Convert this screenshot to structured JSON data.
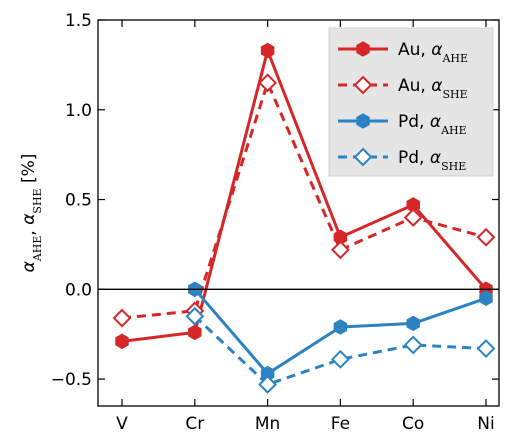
{
  "chart_data": {
    "type": "line",
    "categories": [
      "V",
      "Cr",
      "Mn",
      "Fe",
      "Co",
      "Ni"
    ],
    "ylabel": "α_AHE, α_SHE [%]",
    "ylim": [
      -0.65,
      1.5
    ],
    "yticks": [
      "1.5",
      "1.0",
      "0.5",
      "0.0",
      "−0.5"
    ],
    "ytick_values": [
      1.5,
      1.0,
      0.5,
      0.0,
      -0.5
    ],
    "zero_line": true,
    "grid": false,
    "legend_position": "top-right",
    "series": [
      {
        "name": "Au, α_AHE",
        "color": "#d62728",
        "dashed": false,
        "marker": "hexagon-filled",
        "values": [
          -0.29,
          -0.24,
          1.33,
          0.29,
          0.47,
          0.0
        ]
      },
      {
        "name": "Au, α_SHE",
        "color": "#d62728",
        "dashed": true,
        "marker": "diamond-open",
        "values": [
          -0.16,
          -0.12,
          1.15,
          0.22,
          0.4,
          0.29
        ]
      },
      {
        "name": "Pd, α_AHE",
        "color": "#2b83c4",
        "dashed": false,
        "marker": "hexagon-filled",
        "values": [
          null,
          0.0,
          -0.47,
          -0.21,
          -0.19,
          -0.05
        ]
      },
      {
        "name": "Pd, α_SHE",
        "color": "#2b83c4",
        "dashed": true,
        "marker": "diamond-open",
        "values": [
          null,
          -0.15,
          -0.53,
          -0.39,
          -0.31,
          -0.33
        ]
      }
    ]
  }
}
